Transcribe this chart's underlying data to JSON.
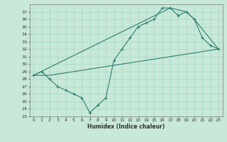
{
  "title": "",
  "xlabel": "Humidex (Indice chaleur)",
  "ylabel": "",
  "bg_color": "#c8e8d8",
  "line_color": "#2d7d6e",
  "grid_color": "#a8d8c8",
  "ylim": [
    23,
    38
  ],
  "xlim": [
    -0.5,
    23.5
  ],
  "yticks": [
    23,
    24,
    25,
    26,
    27,
    28,
    29,
    30,
    31,
    32,
    33,
    34,
    35,
    36,
    37
  ],
  "xticks": [
    0,
    1,
    2,
    3,
    4,
    5,
    6,
    7,
    8,
    9,
    10,
    11,
    12,
    13,
    14,
    15,
    16,
    17,
    18,
    19,
    20,
    21,
    22,
    23
  ],
  "line1_x": [
    0,
    1,
    2,
    3,
    4,
    5,
    6,
    7,
    8,
    9,
    10,
    11,
    12,
    13,
    14,
    15,
    16,
    17,
    18,
    19,
    20,
    21,
    22,
    23
  ],
  "line1_y": [
    28.5,
    29.0,
    28.0,
    27.0,
    26.5,
    26.0,
    25.5,
    23.5,
    24.5,
    25.5,
    30.5,
    32.0,
    33.5,
    35.0,
    35.5,
    36.0,
    37.5,
    37.5,
    36.5,
    37.0,
    36.0,
    33.5,
    32.5,
    32.0
  ],
  "line2_x": [
    0,
    2,
    23
  ],
  "line2_y": [
    28.5,
    28.5,
    32.0
  ],
  "line3_x": [
    0,
    17,
    19,
    20,
    23
  ],
  "line3_y": [
    28.5,
    37.5,
    37.0,
    36.0,
    32.0
  ],
  "tick_fontsize": 4.5,
  "xlabel_fontsize": 5.5
}
